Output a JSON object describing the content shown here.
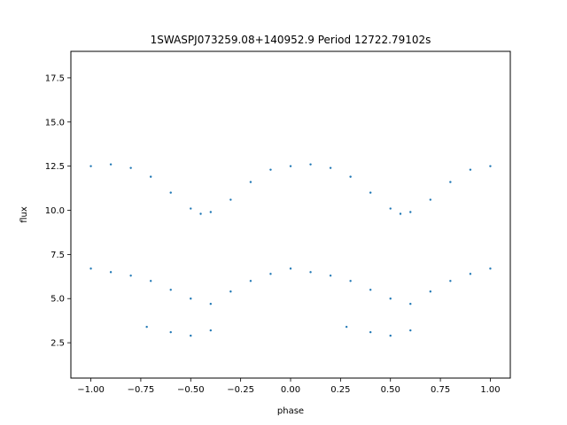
{
  "chart_data": {
    "type": "scatter",
    "title": "1SWASPJ073259.08+140952.9 Period 12722.79102s",
    "xlabel": "phase",
    "ylabel": "flux",
    "xlim": [
      -1.1,
      1.1
    ],
    "ylim": [
      0.5,
      19.0
    ],
    "x_ticks": [
      -1.0,
      -0.75,
      -0.5,
      -0.25,
      0.0,
      0.25,
      0.5,
      0.75,
      1.0
    ],
    "x_tick_labels": [
      "−1.00",
      "−0.75",
      "−0.50",
      "−0.25",
      "0.00",
      "0.25",
      "0.50",
      "0.75",
      "1.00"
    ],
    "y_ticks": [
      2.5,
      5.0,
      7.5,
      10.0,
      12.5,
      15.0,
      17.5
    ],
    "y_tick_labels": [
      "2.5",
      "5.0",
      "7.5",
      "10.0",
      "12.5",
      "15.0",
      "17.5"
    ],
    "grid": false,
    "marker_color": "#1f77b4",
    "series": [
      {
        "phase": [
          -1.0,
          -0.9,
          -0.8,
          -0.7,
          -0.6,
          -0.5,
          -0.45,
          -0.4,
          -0.3,
          -0.2,
          -0.1,
          0.0,
          0.1,
          0.2,
          0.3,
          0.4,
          0.5,
          0.55,
          0.6,
          0.7,
          0.8,
          0.9,
          1.0
        ],
        "flux": [
          12.5,
          12.6,
          12.4,
          11.9,
          11.0,
          10.1,
          9.8,
          9.9,
          10.6,
          11.6,
          12.3,
          12.5,
          12.6,
          12.4,
          11.9,
          11.0,
          10.1,
          9.8,
          9.9,
          10.6,
          11.6,
          12.3,
          12.5
        ]
      },
      {
        "phase": [
          -1.0,
          -0.9,
          -0.8,
          -0.7,
          -0.6,
          -0.5,
          -0.4,
          -0.3,
          -0.2,
          -0.1,
          0.0,
          0.1,
          0.2,
          0.3,
          0.4,
          0.5,
          0.6,
          0.7,
          0.8,
          0.9,
          1.0
        ],
        "flux": [
          6.7,
          6.5,
          6.3,
          6.0,
          5.5,
          5.0,
          4.7,
          5.4,
          6.0,
          6.4,
          6.7,
          6.5,
          6.3,
          6.0,
          5.5,
          5.0,
          4.7,
          5.4,
          6.0,
          6.4,
          6.7
        ]
      },
      {
        "phase": [
          -0.72,
          -0.6,
          -0.5,
          -0.4,
          0.28,
          0.4,
          0.5,
          0.6
        ],
        "flux": [
          3.4,
          3.1,
          2.9,
          3.2,
          3.4,
          3.1,
          2.9,
          3.2
        ]
      }
    ]
  }
}
